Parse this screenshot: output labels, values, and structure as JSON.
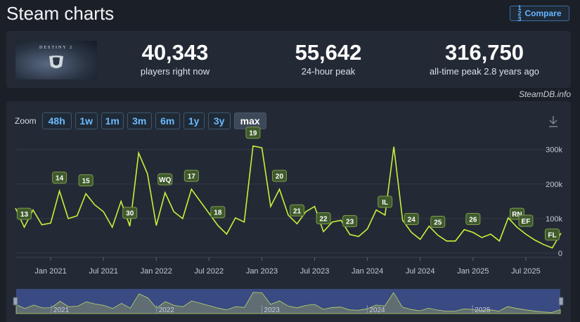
{
  "header": {
    "title": "Steam charts",
    "compare_label": "Compare",
    "compare_icon": "sort-numeric-icon"
  },
  "game": {
    "logo_text": "DESTINY 2"
  },
  "stats": [
    {
      "value": "40,343",
      "label": "players right now"
    },
    {
      "value": "55,642",
      "label": "24-hour peak"
    },
    {
      "value": "316,750",
      "label": "all-time peak 2.8 years ago"
    }
  ],
  "credit": "SteamDB.info",
  "zoom": {
    "label": "Zoom",
    "options": [
      "48h",
      "1w",
      "1m",
      "3m",
      "6m",
      "1y",
      "3y",
      "max"
    ],
    "active": "max"
  },
  "colors": {
    "line": "#c6f23a",
    "accent": "#66b6ff",
    "navigator_fill": "#3a4a82"
  },
  "chart_data": {
    "type": "line",
    "series": [
      {
        "x": [
          "2020-09",
          "2020-10",
          "2020-11",
          "2020-12",
          "2021-01",
          "2021-02",
          "2021-03",
          "2021-04",
          "2021-05",
          "2021-06",
          "2021-07",
          "2021-08",
          "2021-09",
          "2021-10",
          "2021-11",
          "2021-12",
          "2022-01",
          "2022-02",
          "2022-03",
          "2022-04",
          "2022-05",
          "2022-06",
          "2022-07",
          "2022-08",
          "2022-09",
          "2022-10",
          "2022-11",
          "2022-12",
          "2023-01",
          "2023-02",
          "2023-03",
          "2023-04",
          "2023-05",
          "2023-06",
          "2023-07",
          "2023-08",
          "2023-09",
          "2023-10",
          "2023-11",
          "2023-12",
          "2024-01",
          "2024-02",
          "2024-03",
          "2024-04",
          "2024-05",
          "2024-06",
          "2024-07",
          "2024-08",
          "2024-09",
          "2024-10",
          "2024-11",
          "2024-12",
          "2025-01",
          "2025-02",
          "2025-03",
          "2025-04",
          "2025-05",
          "2025-06",
          "2025-07",
          "2025-08",
          "2025-09",
          "2025-10",
          "2025-11"
        ],
        "values": [
          130000,
          75000,
          125000,
          82000,
          87000,
          180000,
          100000,
          108000,
          172000,
          140000,
          120000,
          75000,
          150000,
          78000,
          290000,
          230000,
          80000,
          175000,
          120000,
          100000,
          185000,
          150000,
          115000,
          80000,
          55000,
          102000,
          90000,
          310000,
          305000,
          135000,
          185000,
          110000,
          85000,
          120000,
          135000,
          62000,
          90000,
          95000,
          54000,
          48000,
          70000,
          125000,
          110000,
          308000,
          95000,
          60000,
          40000,
          78000,
          52000,
          35000,
          35000,
          68000,
          60000,
          45000,
          55000,
          35000,
          102000,
          75000,
          55000,
          38000,
          25000,
          15000,
          58000
        ]
      }
    ],
    "annotations": [
      {
        "label": "13",
        "x": "2020-10"
      },
      {
        "label": "14",
        "x": "2021-02"
      },
      {
        "label": "15",
        "x": "2021-05"
      },
      {
        "label": "30",
        "x": "2021-10"
      },
      {
        "label": "WQ",
        "x": "2022-02"
      },
      {
        "label": "17",
        "x": "2022-05"
      },
      {
        "label": "18",
        "x": "2022-08"
      },
      {
        "label": "19",
        "x": "2022-12"
      },
      {
        "label": "20",
        "x": "2023-03"
      },
      {
        "label": "21",
        "x": "2023-05"
      },
      {
        "label": "22",
        "x": "2023-08"
      },
      {
        "label": "23",
        "x": "2023-11"
      },
      {
        "label": "IL",
        "x": "2024-03"
      },
      {
        "label": "24",
        "x": "2024-06"
      },
      {
        "label": "25",
        "x": "2024-09"
      },
      {
        "label": "26",
        "x": "2025-01"
      },
      {
        "label": "RN",
        "x": "2025-06"
      },
      {
        "label": "EF",
        "x": "2025-07"
      },
      {
        "label": "FL",
        "x": "2025-10"
      }
    ],
    "x_tick_labels": [
      "Jan 2021",
      "Jul 2021",
      "Jan 2022",
      "Jul 2022",
      "Jan 2023",
      "Jul 2023",
      "Jan 2024",
      "Jul 2024",
      "Jan 2025",
      "Jul 2025"
    ],
    "y_tick_labels": [
      "0",
      "100k",
      "200k",
      "300k"
    ],
    "ylim": [
      0,
      340000
    ],
    "grid": true,
    "navigator_labels": [
      "2021",
      "2022",
      "2023",
      "2024",
      "2025"
    ]
  }
}
